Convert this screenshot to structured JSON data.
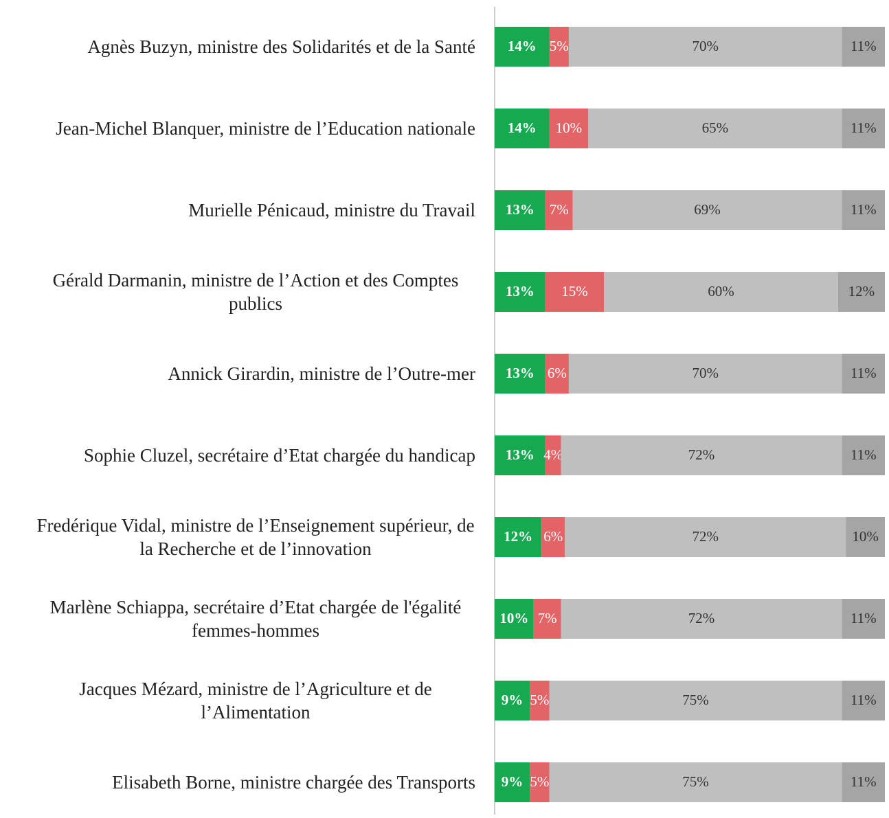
{
  "chart_data": {
    "type": "stacked_barh",
    "categories": [
      "Agnès Buzyn, ministre des Solidarités et de la Santé",
      "Jean-Michel Blanquer, ministre de l’Education nationale",
      "Murielle Pénicaud, ministre du Travail",
      "Gérald Darmanin, ministre de l’Action et des Comptes publics",
      "Annick Girardin, ministre de l’Outre-mer",
      "Sophie Cluzel, secrétaire d’Etat chargée du handicap",
      "Fredérique Vidal, ministre de l’Enseignement supérieur, de la Recherche et de l’innovation",
      "Marlène Schiappa, secrétaire d’Etat chargée de l'égalité femmes-hommes",
      "Jacques Mézard, ministre de l’Agriculture et de l’Alimentation",
      "Elisabeth Borne, ministre chargée des Transports"
    ],
    "xlim": [
      0,
      100
    ],
    "series": [
      {
        "color": "#16a950",
        "values": [
          14,
          14,
          13,
          13,
          13,
          13,
          12,
          10,
          9,
          9
        ],
        "value_labels": [
          "14%",
          "14%",
          "13%",
          "13%",
          "13%",
          "13%",
          "12%",
          "10%",
          "9%",
          "9%"
        ]
      },
      {
        "color": "#e36466",
        "values": [
          5,
          10,
          7,
          15,
          6,
          4,
          6,
          7,
          5,
          5
        ],
        "value_labels": [
          "5%",
          "10%",
          "7%",
          "15%",
          "6%",
          "4%",
          "6%",
          "7%",
          "5%",
          "5%"
        ]
      },
      {
        "color": "#bfbfbf",
        "values": [
          70,
          65,
          69,
          60,
          70,
          72,
          72,
          72,
          75,
          75
        ],
        "value_labels": [
          "70%",
          "65%",
          "69%",
          "60%",
          "70%",
          "72%",
          "72%",
          "72%",
          "75%",
          "75%"
        ]
      },
      {
        "color": "#a5a5a5",
        "values": [
          11,
          11,
          11,
          12,
          11,
          11,
          10,
          11,
          11,
          11
        ],
        "value_labels": [
          "11%",
          "11%",
          "11%",
          "12%",
          "11%",
          "11%",
          "10%",
          "11%",
          "11%",
          "11%"
        ]
      }
    ]
  }
}
